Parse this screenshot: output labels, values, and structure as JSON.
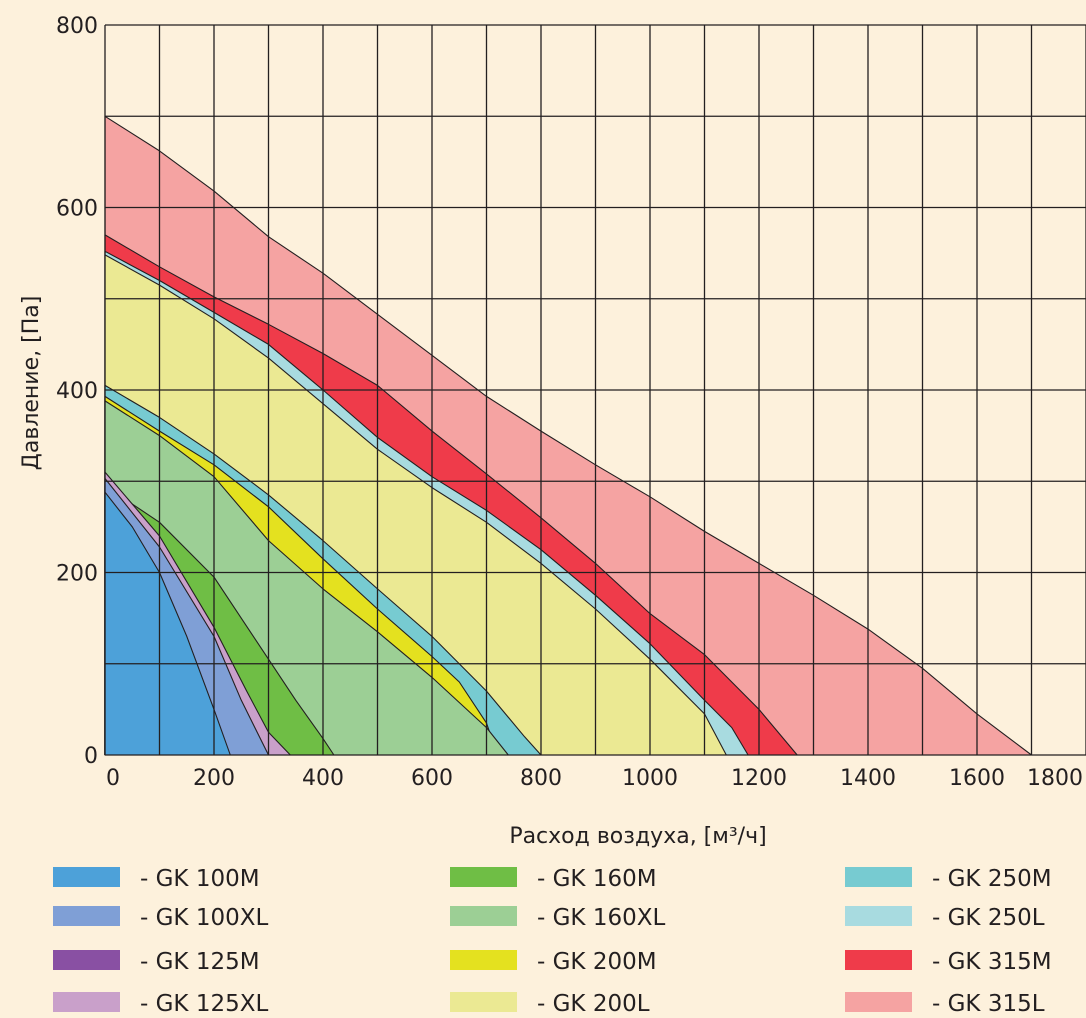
{
  "chart_data": {
    "type": "area",
    "xlabel": "Расход воздуха, [м³/ч]",
    "ylabel": "Давление, [Па]",
    "xlim": [
      0,
      1800
    ],
    "ylim": [
      0,
      800
    ],
    "x_ticks": [
      "0",
      "200",
      "400",
      "600",
      "800",
      "1000",
      "1200",
      "1400",
      "1600",
      "1800"
    ],
    "y_ticks": [
      "0",
      "200",
      "400",
      "600",
      "800"
    ],
    "x_grid_step": 100,
    "y_grid_step": 100,
    "grid": true,
    "legend_position": "bottom",
    "series": [
      {
        "name": "- GK 315L",
        "color": "#f5a3a2",
        "points": [
          [
            0,
            700
          ],
          [
            100,
            662
          ],
          [
            200,
            618
          ],
          [
            300,
            568
          ],
          [
            400,
            528
          ],
          [
            500,
            483
          ],
          [
            600,
            438
          ],
          [
            700,
            393
          ],
          [
            800,
            355
          ],
          [
            900,
            318
          ],
          [
            1000,
            283
          ],
          [
            1100,
            245
          ],
          [
            1200,
            210
          ],
          [
            1300,
            175
          ],
          [
            1400,
            138
          ],
          [
            1500,
            95
          ],
          [
            1600,
            45
          ],
          [
            1700,
            0
          ]
        ]
      },
      {
        "name": "- GK 315M",
        "color": "#ef3b4a",
        "points": [
          [
            0,
            570
          ],
          [
            100,
            535
          ],
          [
            200,
            502
          ],
          [
            300,
            472
          ],
          [
            400,
            440
          ],
          [
            500,
            405
          ],
          [
            600,
            355
          ],
          [
            700,
            308
          ],
          [
            800,
            260
          ],
          [
            900,
            210
          ],
          [
            1000,
            155
          ],
          [
            1100,
            110
          ],
          [
            1200,
            50
          ],
          [
            1270,
            0
          ]
        ]
      },
      {
        "name": "- GK 250L",
        "color": "#a8dbe0",
        "points": [
          [
            0,
            552
          ],
          [
            100,
            520
          ],
          [
            200,
            485
          ],
          [
            300,
            450
          ],
          [
            400,
            400
          ],
          [
            500,
            348
          ],
          [
            600,
            305
          ],
          [
            700,
            268
          ],
          [
            800,
            225
          ],
          [
            900,
            175
          ],
          [
            1000,
            122
          ],
          [
            1100,
            60
          ],
          [
            1150,
            30
          ],
          [
            1180,
            0
          ]
        ]
      },
      {
        "name": "- GK 200L",
        "color": "#ebe993",
        "points": [
          [
            0,
            548
          ],
          [
            100,
            515
          ],
          [
            200,
            478
          ],
          [
            300,
            435
          ],
          [
            400,
            385
          ],
          [
            500,
            335
          ],
          [
            600,
            293
          ],
          [
            700,
            255
          ],
          [
            800,
            210
          ],
          [
            900,
            160
          ],
          [
            1000,
            105
          ],
          [
            1100,
            45
          ],
          [
            1140,
            0
          ]
        ]
      },
      {
        "name": "- GK 250M",
        "color": "#77cbd1",
        "points": [
          [
            0,
            405
          ],
          [
            100,
            370
          ],
          [
            200,
            330
          ],
          [
            300,
            285
          ],
          [
            400,
            235
          ],
          [
            500,
            182
          ],
          [
            600,
            130
          ],
          [
            700,
            70
          ],
          [
            770,
            20
          ],
          [
            800,
            0
          ]
        ]
      },
      {
        "name": "- GK 200M",
        "color": "#e4e11f",
        "points": [
          [
            0,
            393
          ],
          [
            100,
            355
          ],
          [
            200,
            318
          ],
          [
            300,
            272
          ],
          [
            400,
            215
          ],
          [
            500,
            160
          ],
          [
            600,
            108
          ],
          [
            650,
            80
          ],
          [
            700,
            35
          ],
          [
            720,
            0
          ]
        ]
      },
      {
        "name": "- GK 160XL",
        "color": "#9ccf95",
        "points": [
          [
            0,
            388
          ],
          [
            100,
            350
          ],
          [
            200,
            305
          ],
          [
            300,
            235
          ],
          [
            400,
            182
          ],
          [
            500,
            135
          ],
          [
            600,
            85
          ],
          [
            700,
            30
          ],
          [
            740,
            0
          ]
        ]
      },
      {
        "name": "- GK 160M",
        "color": "#6fbe45",
        "points": [
          [
            0,
            295
          ],
          [
            100,
            255
          ],
          [
            200,
            195
          ],
          [
            300,
            105
          ],
          [
            350,
            60
          ],
          [
            400,
            18
          ],
          [
            420,
            0
          ]
        ]
      },
      {
        "name": "- GK 125XL",
        "color": "#c9a0ca",
        "points": [
          [
            0,
            310
          ],
          [
            100,
            240
          ],
          [
            200,
            140
          ],
          [
            260,
            70
          ],
          [
            300,
            25
          ],
          [
            340,
            0
          ]
        ]
      },
      {
        "name": "- GK 125M",
        "color": "#8950a3",
        "points": [
          [
            0,
            300
          ],
          [
            100,
            225
          ],
          [
            150,
            150
          ],
          [
            200,
            85
          ],
          [
            240,
            30
          ],
          [
            260,
            0
          ]
        ]
      },
      {
        "name": "- GK 100XL",
        "color": "#7f9fd6",
        "points": [
          [
            0,
            303
          ],
          [
            100,
            228
          ],
          [
            200,
            130
          ],
          [
            250,
            60
          ],
          [
            300,
            0
          ]
        ]
      },
      {
        "name": "- GK 100M",
        "color": "#4da1d9",
        "points": [
          [
            0,
            288
          ],
          [
            50,
            250
          ],
          [
            100,
            200
          ],
          [
            150,
            130
          ],
          [
            200,
            50
          ],
          [
            230,
            0
          ]
        ]
      }
    ]
  },
  "legend": [
    {
      "label": "- GK 100M",
      "color": "#4da1d9"
    },
    {
      "label": "- GK 100XL",
      "color": "#7f9fd6"
    },
    {
      "label": "- GK 125M",
      "color": "#8950a3"
    },
    {
      "label": "- GK 125XL",
      "color": "#c9a0ca"
    },
    {
      "label": "- GK 160M",
      "color": "#6fbe45"
    },
    {
      "label": "- GK 160XL",
      "color": "#9ccf95"
    },
    {
      "label": "- GK 200M",
      "color": "#e4e11f"
    },
    {
      "label": "- GK 200L",
      "color": "#ebe993"
    },
    {
      "label": "- GK 250M",
      "color": "#77cbd1"
    },
    {
      "label": "- GK 250L",
      "color": "#a8dbe0"
    },
    {
      "label": "- GK 315M",
      "color": "#ef3b4a"
    },
    {
      "label": "- GK 315L",
      "color": "#f5a3a2"
    }
  ],
  "colors": {
    "background": "#fdf1dc",
    "grid": "#231f20"
  }
}
